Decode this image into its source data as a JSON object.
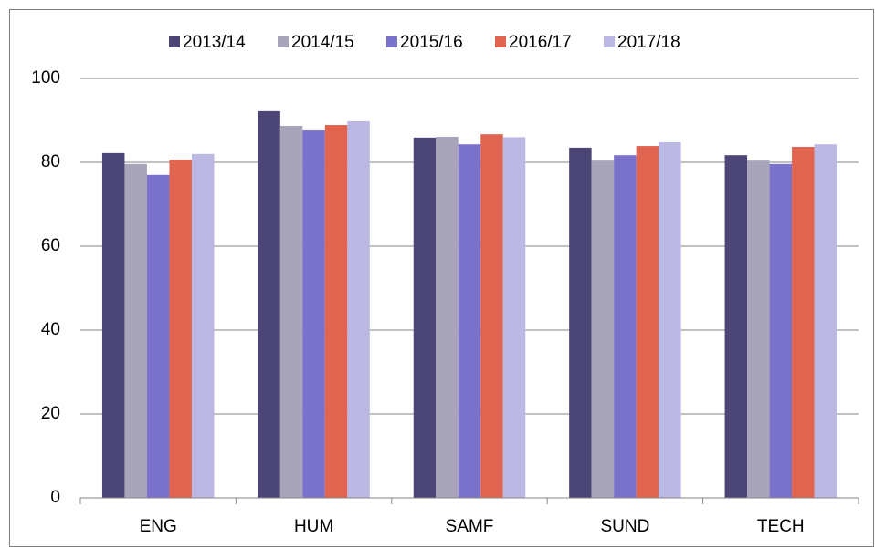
{
  "chart_data": {
    "type": "bar",
    "categories": [
      "ENG",
      "HUM",
      "SAMF",
      "SUND",
      "TECH"
    ],
    "series": [
      {
        "name": "2013/14",
        "color": "#4b4675",
        "values": [
          82.2,
          92.2,
          85.9,
          83.5,
          81.7
        ]
      },
      {
        "name": "2014/15",
        "color": "#a8a5bb",
        "values": [
          79.6,
          88.7,
          86.1,
          80.4,
          80.4
        ]
      },
      {
        "name": "2015/16",
        "color": "#7b72cc",
        "values": [
          77,
          87.6,
          84.3,
          81.7,
          79.6
        ]
      },
      {
        "name": "2016/17",
        "color": "#e0644f",
        "values": [
          80.6,
          88.9,
          86.7,
          83.9,
          83.7
        ]
      },
      {
        "name": "2017/18",
        "color": "#bbb8e4",
        "values": [
          82,
          89.8,
          86,
          84.8,
          84.3
        ]
      }
    ],
    "ylim": [
      0,
      100
    ],
    "yticks": [
      0,
      20,
      40,
      60,
      80,
      100
    ],
    "grid": true,
    "legend": "top"
  }
}
